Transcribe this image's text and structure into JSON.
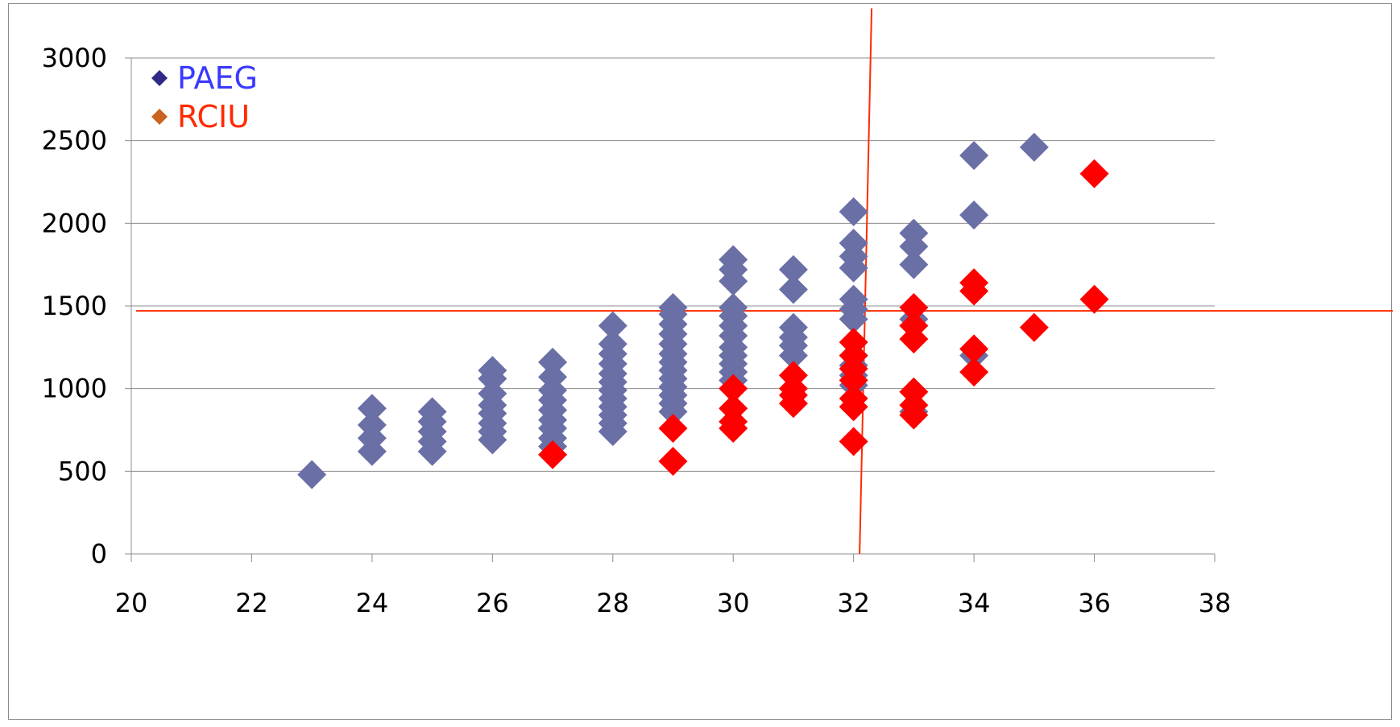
{
  "chart_data": {
    "type": "scatter",
    "title": "",
    "xlabel": "",
    "ylabel": "",
    "xlim": [
      20,
      38
    ],
    "ylim": [
      0,
      3000
    ],
    "x_ticks": [
      "20",
      "22",
      "24",
      "26",
      "28",
      "30",
      "32",
      "34",
      "36",
      "38"
    ],
    "y_ticks": [
      "0",
      "500",
      "1000",
      "1500",
      "2000",
      "2500",
      "3000"
    ],
    "grid": "horizontal",
    "legend_position": "top-left",
    "series": [
      {
        "name": "PAEG",
        "color": "#6a6fa6",
        "legend_marker_color": "#2e2a86",
        "legend_text_color": "#3a3aff",
        "marker": "diamond",
        "points": [
          [
            23,
            480
          ],
          [
            24,
            620
          ],
          [
            24,
            700
          ],
          [
            24,
            780
          ],
          [
            24,
            880
          ],
          [
            25,
            620
          ],
          [
            25,
            680
          ],
          [
            25,
            740
          ],
          [
            25,
            800
          ],
          [
            25,
            860
          ],
          [
            26,
            690
          ],
          [
            26,
            740
          ],
          [
            26,
            790
          ],
          [
            26,
            850
          ],
          [
            26,
            900
          ],
          [
            26,
            970
          ],
          [
            26,
            1060
          ],
          [
            26,
            1110
          ],
          [
            27,
            650
          ],
          [
            27,
            700
          ],
          [
            27,
            760
          ],
          [
            27,
            810
          ],
          [
            27,
            870
          ],
          [
            27,
            930
          ],
          [
            27,
            990
          ],
          [
            27,
            1070
          ],
          [
            27,
            1160
          ],
          [
            28,
            740
          ],
          [
            28,
            790
          ],
          [
            28,
            840
          ],
          [
            28,
            890
          ],
          [
            28,
            940
          ],
          [
            28,
            990
          ],
          [
            28,
            1040
          ],
          [
            28,
            1090
          ],
          [
            28,
            1150
          ],
          [
            28,
            1210
          ],
          [
            28,
            1270
          ],
          [
            28,
            1380
          ],
          [
            29,
            860
          ],
          [
            29,
            910
          ],
          [
            29,
            960
          ],
          [
            29,
            1010
          ],
          [
            29,
            1060
          ],
          [
            29,
            1110
          ],
          [
            29,
            1160
          ],
          [
            29,
            1210
          ],
          [
            29,
            1270
          ],
          [
            29,
            1330
          ],
          [
            29,
            1390
          ],
          [
            29,
            1450
          ],
          [
            29,
            1490
          ],
          [
            30,
            1050
          ],
          [
            30,
            1100
          ],
          [
            30,
            1150
          ],
          [
            30,
            1200
          ],
          [
            30,
            1250
          ],
          [
            30,
            1320
          ],
          [
            30,
            1380
          ],
          [
            30,
            1440
          ],
          [
            30,
            1490
          ],
          [
            30,
            1650
          ],
          [
            30,
            1720
          ],
          [
            30,
            1780
          ],
          [
            31,
            1200
          ],
          [
            31,
            1260
          ],
          [
            31,
            1310
          ],
          [
            31,
            1370
          ],
          [
            31,
            1600
          ],
          [
            31,
            1720
          ],
          [
            32,
            1020
          ],
          [
            32,
            1080
          ],
          [
            32,
            1140
          ],
          [
            32,
            1200
          ],
          [
            32,
            1420
          ],
          [
            32,
            1480
          ],
          [
            32,
            1540
          ],
          [
            32,
            1730
          ],
          [
            32,
            1800
          ],
          [
            32,
            1880
          ],
          [
            32,
            2070
          ],
          [
            33,
            860
          ],
          [
            33,
            1420
          ],
          [
            33,
            1750
          ],
          [
            33,
            1860
          ],
          [
            33,
            1940
          ],
          [
            34,
            1200
          ],
          [
            34,
            2050
          ],
          [
            34,
            2410
          ],
          [
            35,
            2460
          ]
        ]
      },
      {
        "name": "RCIU",
        "color": "#ff0000",
        "legend_marker_color": "#c8641e",
        "legend_text_color": "#ff2a00",
        "marker": "diamond",
        "points": [
          [
            27,
            600
          ],
          [
            29,
            560
          ],
          [
            29,
            760
          ],
          [
            30,
            760
          ],
          [
            30,
            800
          ],
          [
            30,
            880
          ],
          [
            30,
            1000
          ],
          [
            31,
            910
          ],
          [
            31,
            960
          ],
          [
            31,
            1000
          ],
          [
            31,
            1080
          ],
          [
            32,
            680
          ],
          [
            32,
            890
          ],
          [
            32,
            940
          ],
          [
            32,
            1050
          ],
          [
            32,
            1120
          ],
          [
            32,
            1200
          ],
          [
            32,
            1280
          ],
          [
            33,
            840
          ],
          [
            33,
            900
          ],
          [
            33,
            980
          ],
          [
            33,
            1300
          ],
          [
            33,
            1380
          ],
          [
            33,
            1490
          ],
          [
            34,
            1100
          ],
          [
            34,
            1240
          ],
          [
            34,
            1590
          ],
          [
            34,
            1640
          ],
          [
            35,
            1370
          ],
          [
            36,
            1540
          ],
          [
            36,
            2300
          ]
        ]
      }
    ],
    "reference_lines": [
      {
        "orientation": "horizontal",
        "value": 1470,
        "color": "#ff2a00"
      },
      {
        "orientation": "vertical",
        "from": [
          32.3,
          3300
        ],
        "to": [
          32.1,
          0
        ],
        "color": "#ff2a00"
      }
    ]
  }
}
